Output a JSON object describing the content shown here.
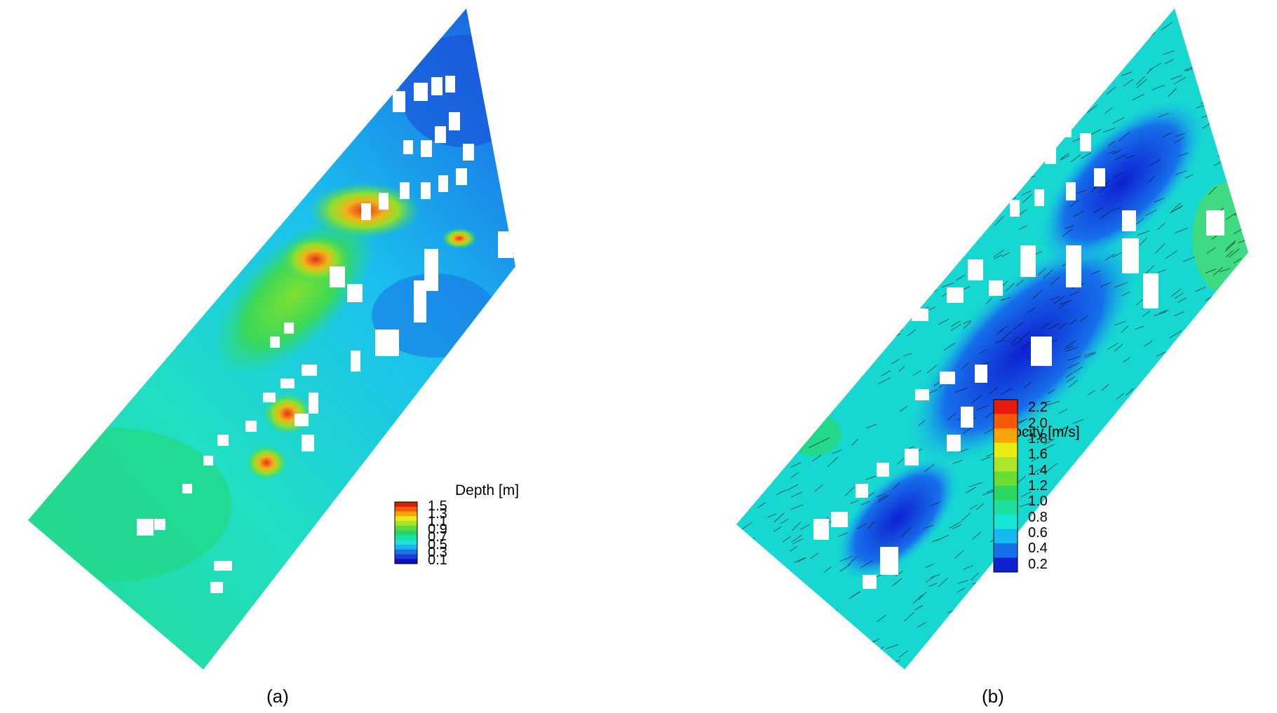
{
  "panel_a": {
    "caption": "(a)",
    "legend": {
      "title": "Depth [m]",
      "labels": [
        "1.5",
        "1.3",
        "1.1",
        "0.9",
        "0.7",
        "0.5",
        "0.3",
        "0.1"
      ],
      "colors": [
        "#d81e05",
        "#f45b0a",
        "#f7a60a",
        "#e8e81c",
        "#a9e22a",
        "#5fd83a",
        "#23d66a",
        "#19e0a4",
        "#1fe3da",
        "#1ab2f0",
        "#1a74e6",
        "#1a3ed6",
        "#1010b8"
      ]
    }
  },
  "panel_b": {
    "caption": "(b)",
    "legend": {
      "title": "Velocity [m/s]",
      "labels": [
        "2.2",
        "2.0",
        "1.8",
        "1.6",
        "1.4",
        "1.2",
        "1.0",
        "0.8",
        "0.6",
        "0.4",
        "0.2"
      ],
      "colors": [
        "#e81a0c",
        "#f55a0c",
        "#f8a30a",
        "#eaea14",
        "#aee52a",
        "#68de34",
        "#2ad85e",
        "#1cdfa0",
        "#16e6d6",
        "#17b8f0",
        "#1670ea",
        "#0e20d2"
      ]
    }
  }
}
